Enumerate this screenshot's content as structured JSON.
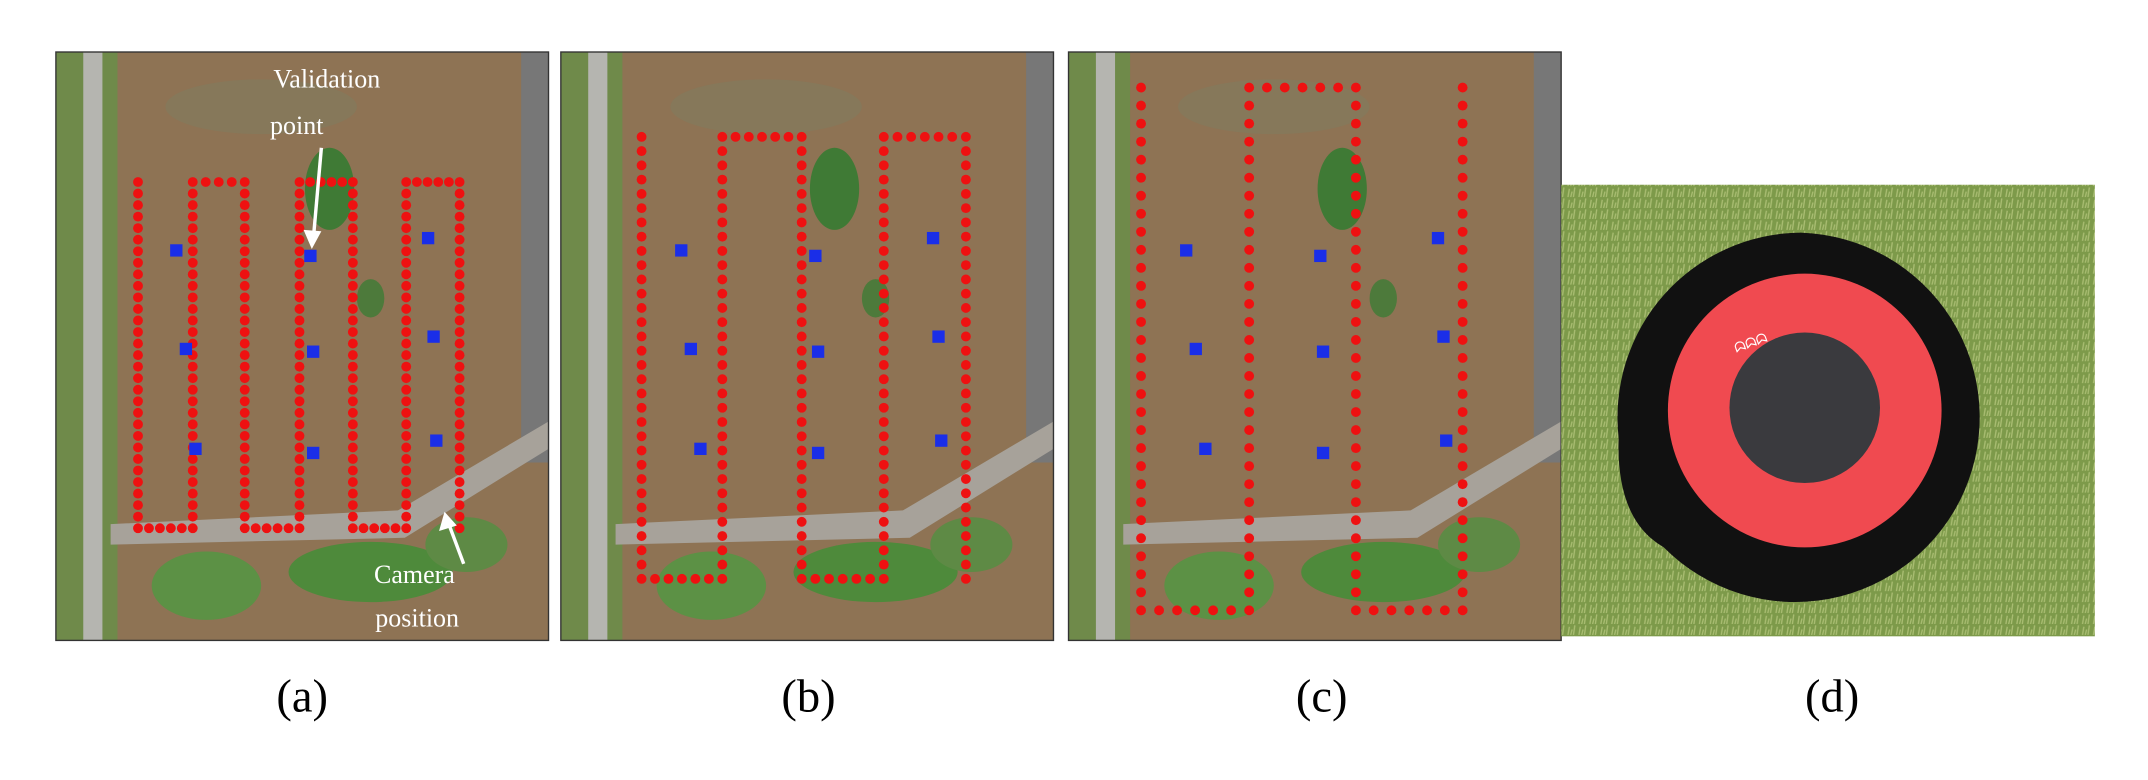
{
  "panels": [
    {
      "label": "(a)",
      "annotations": {
        "validation": [
          "Validation",
          "point"
        ],
        "camera": [
          "Camera",
          "position"
        ]
      }
    },
    {
      "label": "(b)"
    },
    {
      "label": "(c)"
    },
    {
      "label": "(d)"
    }
  ]
}
